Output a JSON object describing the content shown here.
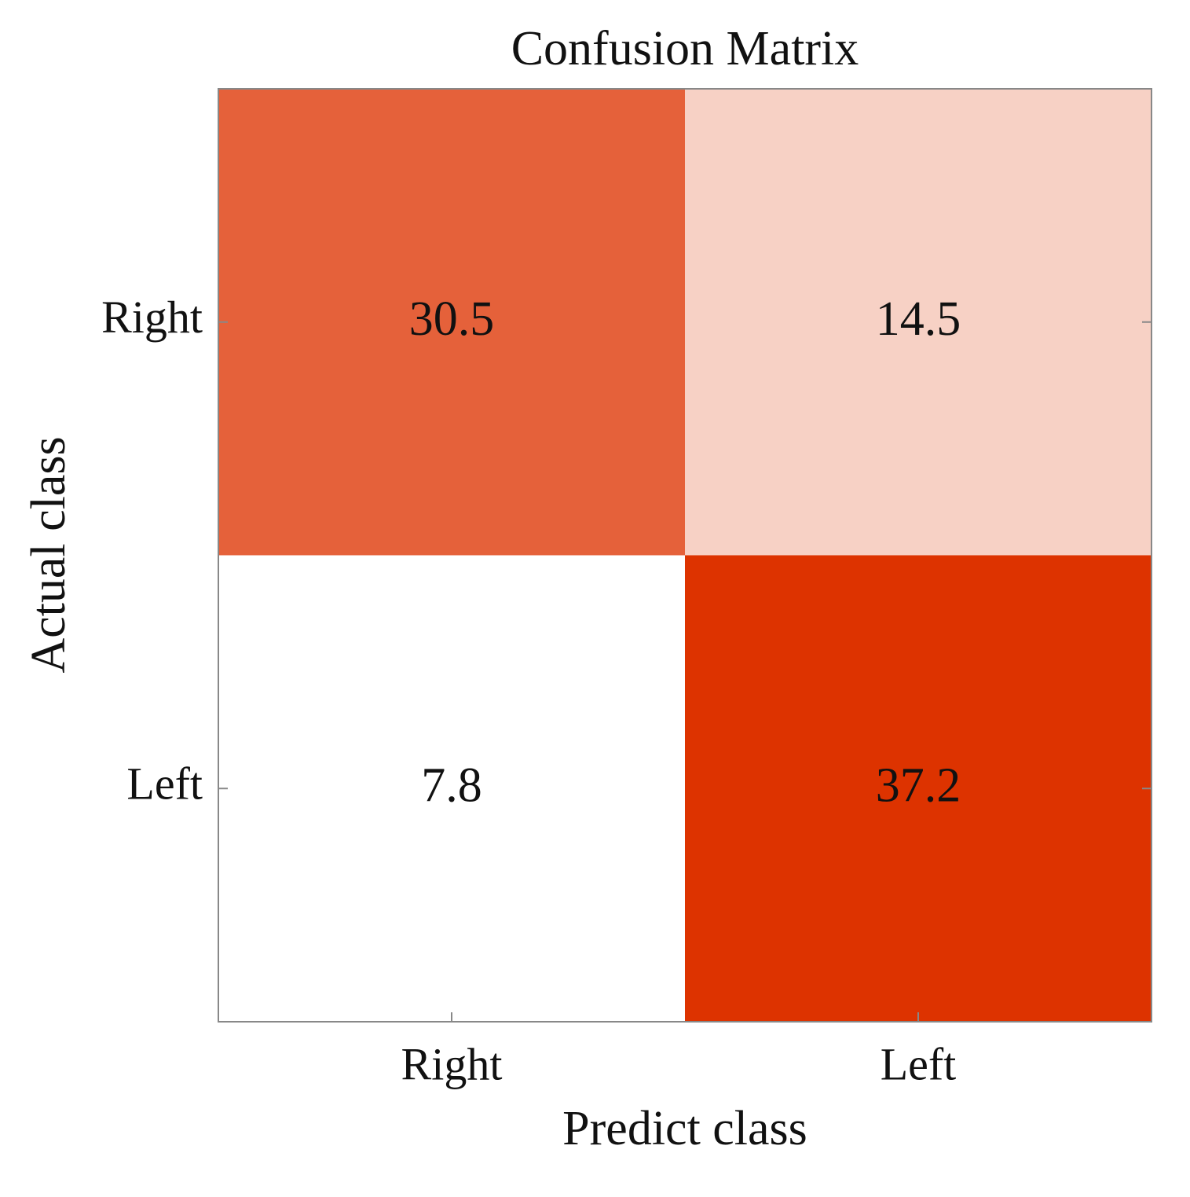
{
  "chart_data": {
    "type": "heatmap",
    "title": "Confusion Matrix",
    "x_label": "Predict class",
    "y_label": "Actual class",
    "x_categories": [
      "Right",
      "Left"
    ],
    "y_categories": [
      "Right",
      "Left"
    ],
    "values": [
      [
        30.5,
        14.5
      ],
      [
        7.8,
        37.2
      ]
    ],
    "colormap": [
      "#ffffff",
      "#dd3300"
    ]
  }
}
